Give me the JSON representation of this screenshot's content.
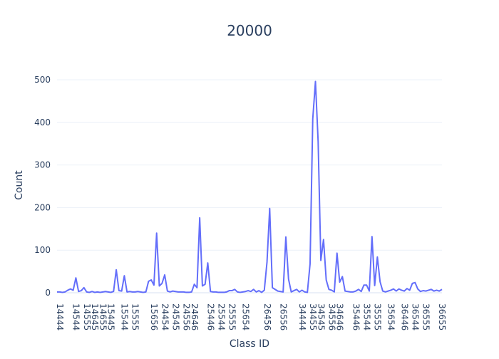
{
  "chart_data": {
    "type": "line",
    "title": "20000",
    "xlabel": "Class ID",
    "ylabel": "Count",
    "ylim": [
      -15,
      520
    ],
    "yticks": [
      0,
      100,
      200,
      300,
      400,
      500
    ],
    "grid": true,
    "legend": "none",
    "x_ticks_shown": [
      "14444",
      "14544",
      "14555",
      "14655",
      "14645",
      "15445",
      "15544",
      "15555",
      "15656",
      "24454",
      "24545",
      "24556",
      "24646",
      "25446",
      "25544",
      "25555",
      "25654",
      "26456",
      "26556",
      "34444",
      "34455",
      "34545",
      "34556",
      "34646",
      "35446",
      "35544",
      "35555",
      "35566",
      "35654",
      "36446",
      "36544",
      "36555",
      "36566",
      "36655"
    ],
    "series": [
      {
        "color": "#636efa",
        "points": [
          [
            "14444",
            2
          ],
          [
            "14445",
            2
          ],
          [
            "14446",
            1
          ],
          [
            "14454",
            2
          ],
          [
            "14455",
            6
          ],
          [
            "14456",
            9
          ],
          [
            "14544",
            6
          ],
          [
            "14545",
            35
          ],
          [
            "14546",
            3
          ],
          [
            "14554",
            5
          ],
          [
            "14555",
            12
          ],
          [
            "14556",
            2
          ],
          [
            "14644",
            1
          ],
          [
            "14645",
            3
          ],
          [
            "14646",
            1
          ],
          [
            "14654",
            2
          ],
          [
            "14655",
            1
          ],
          [
            "14656",
            2
          ],
          [
            "15444",
            3
          ],
          [
            "15445",
            2
          ],
          [
            "15446",
            1
          ],
          [
            "15454",
            3
          ],
          [
            "15455",
            54
          ],
          [
            "15456",
            5
          ],
          [
            "15544",
            4
          ],
          [
            "15545",
            40
          ],
          [
            "15546",
            2
          ],
          [
            "15554",
            3
          ],
          [
            "15555",
            2
          ],
          [
            "15556",
            2
          ],
          [
            "15644",
            3
          ],
          [
            "15645",
            2
          ],
          [
            "15646",
            1
          ],
          [
            "15654",
            2
          ],
          [
            "15655",
            27
          ],
          [
            "15656",
            30
          ],
          [
            "24444",
            18
          ],
          [
            "24445",
            140
          ],
          [
            "24446",
            16
          ],
          [
            "24454",
            22
          ],
          [
            "24455",
            42
          ],
          [
            "24456",
            4
          ],
          [
            "24544",
            2
          ],
          [
            "24545",
            4
          ],
          [
            "24546",
            3
          ],
          [
            "24554",
            2
          ],
          [
            "24555",
            2
          ],
          [
            "24556",
            2
          ],
          [
            "24644",
            1
          ],
          [
            "24645",
            1
          ],
          [
            "24646",
            2
          ],
          [
            "24654",
            20
          ],
          [
            "24655",
            12
          ],
          [
            "24656",
            176
          ],
          [
            "25444",
            16
          ],
          [
            "25445",
            20
          ],
          [
            "25446",
            70
          ],
          [
            "25454",
            3
          ],
          [
            "25455",
            2
          ],
          [
            "25456",
            2
          ],
          [
            "25544",
            1
          ],
          [
            "25545",
            1
          ],
          [
            "25546",
            1
          ],
          [
            "25554",
            2
          ],
          [
            "25555",
            5
          ],
          [
            "25556",
            5
          ],
          [
            "25644",
            8
          ],
          [
            "25645",
            2
          ],
          [
            "25646",
            1
          ],
          [
            "25654",
            2
          ],
          [
            "25655",
            3
          ],
          [
            "25656",
            5
          ],
          [
            "26444",
            3
          ],
          [
            "26445",
            8
          ],
          [
            "26446",
            2
          ],
          [
            "26454",
            5
          ],
          [
            "26455",
            1
          ],
          [
            "26456",
            6
          ],
          [
            "26544",
            72
          ],
          [
            "26545",
            198
          ],
          [
            "26546",
            12
          ],
          [
            "26554",
            8
          ],
          [
            "26555",
            4
          ],
          [
            "26556",
            3
          ],
          [
            "26644",
            2
          ],
          [
            "26645",
            131
          ],
          [
            "26646",
            32
          ],
          [
            "26654",
            2
          ],
          [
            "26655",
            5
          ],
          [
            "26656",
            8
          ],
          [
            "34444",
            2
          ],
          [
            "34445",
            6
          ],
          [
            "34446",
            2
          ],
          [
            "34454",
            1
          ],
          [
            "34455",
            68
          ],
          [
            "34456",
            408
          ],
          [
            "34544",
            496
          ],
          [
            "34545",
            355
          ],
          [
            "34546",
            76
          ],
          [
            "34554",
            125
          ],
          [
            "34555",
            30
          ],
          [
            "34556",
            8
          ],
          [
            "34644",
            6
          ],
          [
            "34645",
            2
          ],
          [
            "34646",
            93
          ],
          [
            "34654",
            25
          ],
          [
            "34655",
            38
          ],
          [
            "34656",
            4
          ],
          [
            "35444",
            3
          ],
          [
            "35445",
            2
          ],
          [
            "35446",
            2
          ],
          [
            "35454",
            4
          ],
          [
            "35455",
            8
          ],
          [
            "35456",
            3
          ],
          [
            "35544",
            18
          ],
          [
            "35545",
            18
          ],
          [
            "35546",
            4
          ],
          [
            "35554",
            132
          ],
          [
            "35555",
            17
          ],
          [
            "35556",
            84
          ],
          [
            "35644",
            26
          ],
          [
            "35645",
            4
          ],
          [
            "35646",
            2
          ],
          [
            "35654",
            4
          ],
          [
            "35655",
            6
          ],
          [
            "35656",
            9
          ],
          [
            "36444",
            4
          ],
          [
            "36445",
            9
          ],
          [
            "36446",
            6
          ],
          [
            "36454",
            4
          ],
          [
            "36455",
            10
          ],
          [
            "36456",
            6
          ],
          [
            "36544",
            22
          ],
          [
            "36545",
            24
          ],
          [
            "36546",
            9
          ],
          [
            "36554",
            3
          ],
          [
            "36555",
            5
          ],
          [
            "36556",
            4
          ],
          [
            "36644",
            6
          ],
          [
            "36645",
            8
          ],
          [
            "36646",
            4
          ],
          [
            "36654",
            6
          ],
          [
            "36655",
            4
          ],
          [
            "36656",
            8
          ]
        ]
      }
    ]
  }
}
